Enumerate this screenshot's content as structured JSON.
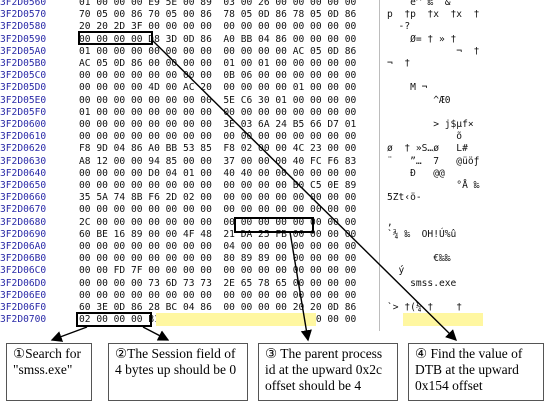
{
  "rows": [
    {
      "addr": "3F2D0560",
      "hex": "01 00 00 00 E9 5E 00 89  03 00 26 00 00 00 00 00",
      "ascii": "    é^ ‰  &"
    },
    {
      "addr": "3F2D0570",
      "hex": "70 05 00 86 70 05 00 86  78 05 0D 86 78 05 0D 86",
      "ascii": "p  †p  †x  †x  †"
    },
    {
      "addr": "3F2D0580",
      "hex": "20 20 2D 3F 00 00 00 00  00 00 00 00 00 00 00 00",
      "ascii": "  -?"
    },
    {
      "addr": "3F2D0590",
      "hex": "00 00 00 00 D8 3D 0D 86  A0 BB 04 86 00 00 00 00",
      "ascii": "    Ø= † » †"
    },
    {
      "addr": "3F2D05A0",
      "hex": "01 00 00 00 00 00 00 00  00 00 00 00 AC 05 0D 86",
      "ascii": "            ¬  †"
    },
    {
      "addr": "3F2D05B0",
      "hex": "AC 05 0D 86 00 00 00 00  01 00 01 00 00 00 00 00",
      "ascii": "¬  †"
    },
    {
      "addr": "3F2D05C0",
      "hex": "00 00 00 00 00 00 00 00  0B 06 00 00 00 00 00 00",
      "ascii": ""
    },
    {
      "addr": "3F2D05D0",
      "hex": "00 00 00 00 4D 00 AC 20  00 00 00 00 01 00 00 00",
      "ascii": "    M ¬"
    },
    {
      "addr": "3F2D05E0",
      "hex": "00 00 00 00 00 00 00 00  5E C6 30 01 00 00 00 00",
      "ascii": "        ^Æ0"
    },
    {
      "addr": "3F2D05F0",
      "hex": "01 00 00 00 00 00 00 00  00 00 00 00 00 00 00 00",
      "ascii": ""
    },
    {
      "addr": "3F2D0600",
      "hex": "00 00 00 00 00 00 00 00  3E 03 6A 24 B5 66 D7 01",
      "ascii": "        > j$µf×"
    },
    {
      "addr": "3F2D0610",
      "hex": "00 00 00 00 00 00 00 00  00 00 00 00 00 00 00 00",
      "ascii": "            õ"
    },
    {
      "addr": "3F2D0620",
      "hex": "F8 9D 04 86 A0 BB 53 85  F8 02 00 00 4C 23 00 00",
      "ascii": "ø  † »S…ø   L#"
    },
    {
      "addr": "3F2D0630",
      "hex": "A8 12 00 00 94 85 00 00  37 00 00 00 40 FC F6 83",
      "ascii": "¨   ”…  7   @üöƒ"
    },
    {
      "addr": "3F2D0640",
      "hex": "00 00 00 00 D0 04 01 00  40 40 00 00 00 00 00 00",
      "ascii": "    Ð   @@"
    },
    {
      "addr": "3F2D0650",
      "hex": "00 00 00 00 00 00 00 00  00 00 00 00 B0 C5 0E 89",
      "ascii": "            °Å ‰"
    },
    {
      "addr": "3F2D0660",
      "hex": "35 5A 74 8B F6 2D 02 00  00 00 00 00 00 00 00 00",
      "ascii": "5Zt‹ö-"
    },
    {
      "addr": "3F2D0670",
      "hex": "00 00 00 00 00 00 00 00  00 00 00 00 00 00 00 00",
      "ascii": ""
    },
    {
      "addr": "3F2D0680",
      "hex": "2C 00 00 00 00 00 00 00  00 00 00 00 00 00 00 00",
      "ascii": ","
    },
    {
      "addr": "3F2D0690",
      "hex": "60 BE 16 89 00 00 4F 48  21 DA 25 FB 00 00 00 00",
      "ascii": "`¾ ‰  OH!Ú%û"
    },
    {
      "addr": "3F2D06A0",
      "hex": "00 00 00 00 00 00 00 00  04 00 00 00 00 00 00 00",
      "ascii": ""
    },
    {
      "addr": "3F2D06B0",
      "hex": "00 00 00 00 00 00 00 00  80 89 89 00 00 00 00 00",
      "ascii": "        €‰‰"
    },
    {
      "addr": "3F2D06C0",
      "hex": "00 00 FD 7F 00 00 00 00  00 00 00 00 00 00 00 00",
      "ascii": "  ý"
    },
    {
      "addr": "3F2D06D0",
      "hex": "00 00 00 00 73 6D 73 73  2E 65 78 65 00 00 00 00",
      "ascii": "    smss.exe"
    },
    {
      "addr": "3F2D06E0",
      "hex": "00 00 00 00 00 00 00 00  00 00 00 00 00 00 00 00",
      "ascii": ""
    },
    {
      "addr": "3F2D06F0",
      "hex": "60 3E 0D 86 28 BC 04 86  00 00 00 00 20 20 0D 86",
      "ascii": "`> †(¼ †    †"
    },
    {
      "addr": "3F2D0700",
      "hex": "02 00 00 00 B1 0E CD 1D  01 00 00 00 00 00 00 00",
      "ascii": "    ± Í"
    }
  ],
  "captions": [
    {
      "text": "①Search for \"smss.exe\""
    },
    {
      "text": "②The Session field of 4 bytes up should be 0"
    },
    {
      "text": "③ The parent process id at the upward 0x2c offset should be 4"
    },
    {
      "text": "④ Find the value of DTB at the upward 0x154 offset"
    }
  ]
}
